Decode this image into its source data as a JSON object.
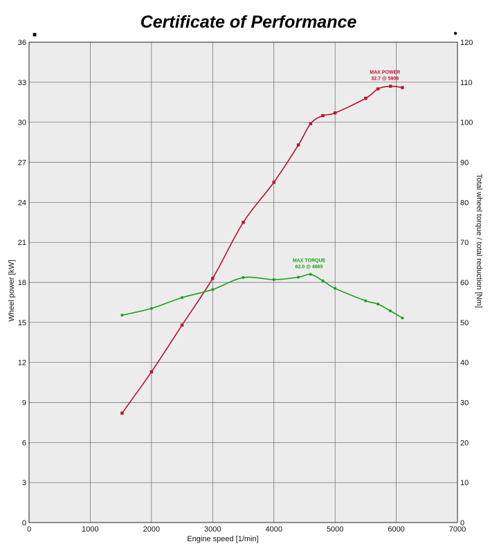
{
  "chart_data": {
    "type": "line",
    "title": "Certificate of Performance",
    "xlabel": "Engine speed [1/min]",
    "ylabel_left": "Wheel power [kW]",
    "ylabel_right": "Total wheel torque / total reduction [Nm]",
    "xlim": [
      0,
      7000
    ],
    "ylim_left": [
      0,
      36
    ],
    "ylim_right": [
      0,
      120
    ],
    "x_ticks": [
      0,
      1000,
      2000,
      3000,
      4000,
      5000,
      6000,
      7000
    ],
    "y_ticks_left": [
      0,
      3,
      6,
      9,
      12,
      15,
      18,
      21,
      24,
      27,
      30,
      33,
      36
    ],
    "y_ticks_right": [
      0,
      10,
      20,
      30,
      40,
      50,
      60,
      70,
      80,
      90,
      100,
      110,
      120
    ],
    "grid": true,
    "legend_markers": {
      "left": "■",
      "right": "●"
    },
    "series": [
      {
        "axis": "left",
        "color": "#c0102e",
        "marker": "square",
        "points": [
          [
            1520,
            8.2
          ],
          [
            2000,
            11.3
          ],
          [
            2500,
            14.8
          ],
          [
            3000,
            18.3
          ],
          [
            3500,
            22.5
          ],
          [
            4000,
            25.5
          ],
          [
            4400,
            28.3
          ],
          [
            4600,
            29.9
          ],
          [
            4800,
            30.5
          ],
          [
            5000,
            30.7
          ],
          [
            5500,
            31.8
          ],
          [
            5700,
            32.5
          ],
          [
            5906,
            32.7
          ],
          [
            6100,
            32.6
          ]
        ]
      },
      {
        "axis": "right",
        "color": "#1aa01a",
        "marker": "dot",
        "points": [
          [
            1520,
            51.8
          ],
          [
            2000,
            53.5
          ],
          [
            2500,
            56.2
          ],
          [
            3000,
            58.2
          ],
          [
            3500,
            61.2
          ],
          [
            4000,
            60.7
          ],
          [
            4400,
            61.3
          ],
          [
            4600,
            62.0
          ],
          [
            4800,
            60.4
          ],
          [
            5000,
            58.5
          ],
          [
            5500,
            55.4
          ],
          [
            5700,
            54.6
          ],
          [
            5900,
            52.9
          ],
          [
            6100,
            51.1
          ]
        ]
      }
    ],
    "annotations": [
      {
        "lines": [
          "MAX POWER",
          "32.7 @ 5906"
        ],
        "color": "#c0102e",
        "x": 5906,
        "y": 32.7,
        "axis": "left"
      },
      {
        "lines": [
          "MAX TORQUE",
          "62.0 @ 4665"
        ],
        "color": "#1aa01a",
        "x": 4665,
        "y": 62.0,
        "axis": "right"
      }
    ]
  }
}
